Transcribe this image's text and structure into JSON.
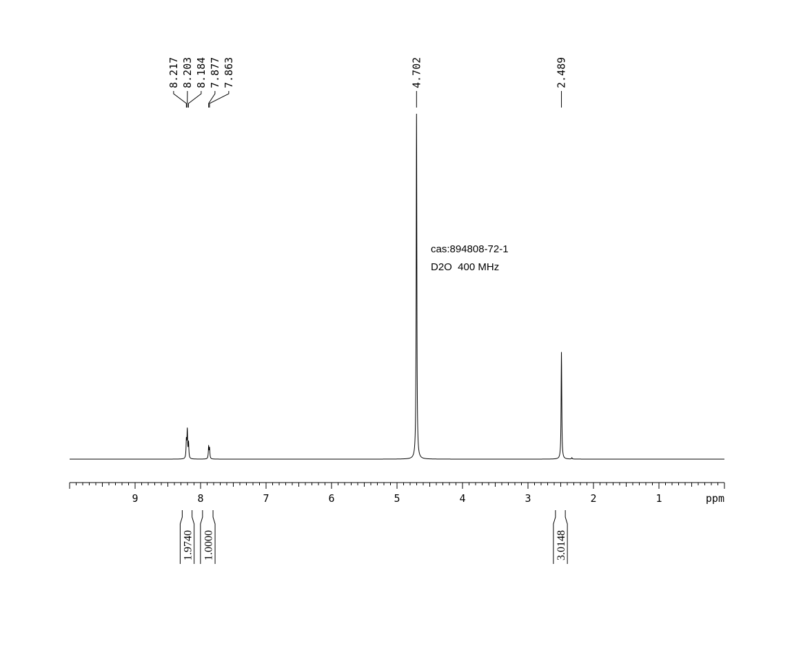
{
  "chart_data": {
    "type": "line",
    "title": "",
    "annotations": [
      "cas:894808-72-1",
      "D2O  400 MHz"
    ],
    "xlabel": "ppm",
    "x_reversed": true,
    "xlim": [
      10.0,
      0.0
    ],
    "x_ticks": [
      "9",
      "8",
      "7",
      "6",
      "5",
      "4",
      "3",
      "2",
      "1"
    ],
    "ylabel": "",
    "grid": false,
    "series": [
      {
        "peaks": [
          {
            "ppm": 8.217,
            "rel_height": 0.05
          },
          {
            "ppm": 8.203,
            "rel_height": 0.08
          },
          {
            "ppm": 8.184,
            "rel_height": 0.045
          },
          {
            "ppm": 7.877,
            "rel_height": 0.035
          },
          {
            "ppm": 7.863,
            "rel_height": 0.03
          },
          {
            "ppm": 4.702,
            "rel_height": 1.0
          },
          {
            "ppm": 2.489,
            "rel_height": 0.31
          },
          {
            "ppm": 2.33,
            "rel_height": 0.004
          }
        ]
      }
    ],
    "peak_labels": [
      {
        "text": "8.217",
        "ppm": 8.217,
        "group": "A"
      },
      {
        "text": "8.203",
        "ppm": 8.203,
        "group": "A"
      },
      {
        "text": "8.184",
        "ppm": 8.184,
        "group": "A"
      },
      {
        "text": "7.877",
        "ppm": 7.877,
        "group": "B"
      },
      {
        "text": "7.863",
        "ppm": 7.863,
        "group": "B"
      },
      {
        "text": "4.702",
        "ppm": 4.702,
        "group": "C"
      },
      {
        "text": "2.489",
        "ppm": 2.489,
        "group": "D"
      }
    ],
    "integrals": [
      {
        "value": "1.9740",
        "from_ppm": 8.28,
        "to_ppm": 8.13
      },
      {
        "value": "1.0000",
        "from_ppm": 7.97,
        "to_ppm": 7.81
      },
      {
        "value": "3.0148",
        "from_ppm": 2.58,
        "to_ppm": 2.43
      }
    ]
  }
}
